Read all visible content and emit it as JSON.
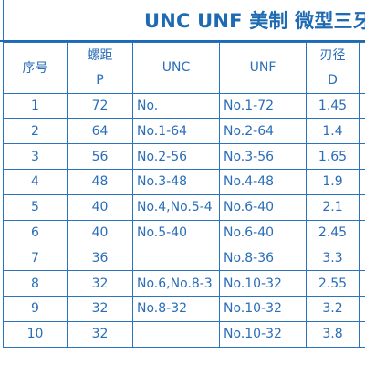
{
  "title": "UNC UNF 美制 微型三牙内",
  "headers": {
    "seq": "序号",
    "pitch": "螺距",
    "pitch_unit": "P",
    "unc": "UNC",
    "unf": "UNF",
    "diameter": "刃径",
    "diameter_unit": "D"
  },
  "rows": [
    {
      "seq": "1",
      "pitch": "72",
      "unc": "No.",
      "unf": "No.1-72",
      "d": "1.45"
    },
    {
      "seq": "2",
      "pitch": "64",
      "unc": "No.1-64",
      "unf": "No.2-64",
      "d": "1.4"
    },
    {
      "seq": "3",
      "pitch": "56",
      "unc": "No.2-56",
      "unf": "No.3-56",
      "d": "1.65"
    },
    {
      "seq": "4",
      "pitch": "48",
      "unc": "No.3-48",
      "unf": "No.4-48",
      "d": "1.9"
    },
    {
      "seq": "5",
      "pitch": "40",
      "unc": "No.4,No.5-4",
      "unf": "No.6-40",
      "d": "2.1"
    },
    {
      "seq": "6",
      "pitch": "40",
      "unc": "No.5-40",
      "unf": "No.6-40",
      "d": "2.45"
    },
    {
      "seq": "7",
      "pitch": "36",
      "unc": "",
      "unf": "No.8-36",
      "d": "3.3"
    },
    {
      "seq": "8",
      "pitch": "32",
      "unc": "No.6,No.8-3",
      "unf": "No.10-32",
      "d": "2.55"
    },
    {
      "seq": "9",
      "pitch": "32",
      "unc": "No.8-32",
      "unf": "No.10-32",
      "d": "3.2"
    },
    {
      "seq": "10",
      "pitch": "32",
      "unc": "",
      "unf": "No.10-32",
      "d": "3.8"
    }
  ]
}
